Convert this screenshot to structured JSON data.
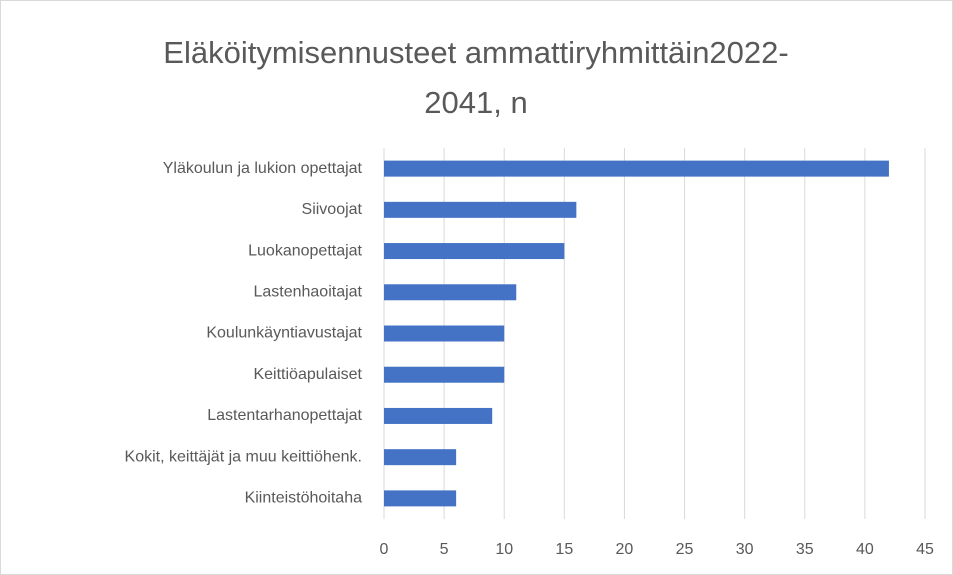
{
  "chart_data": {
    "type": "bar",
    "orientation": "horizontal",
    "title": "Eläköitymisennusteet ammattiryhmittäin2022-2041, n",
    "categories": [
      "Yläkoulun ja lukion opettajat",
      "Siivoojat",
      "Luokanopettajat",
      "Lastenhaoitajat",
      "Koulunkäyntiavustajat",
      "Keittiöapulaiset",
      "Lastentarhanopettajat",
      "Kokit, keittäjät ja muu keittiöhenk.",
      "Kiinteistöhoitaha"
    ],
    "values": [
      42,
      16,
      15,
      11,
      10,
      10,
      9,
      6,
      6
    ],
    "color": "#4472c4",
    "xlim": [
      0,
      45
    ],
    "xticks": [
      0,
      5,
      10,
      15,
      20,
      25,
      30,
      35,
      40,
      45
    ],
    "grid": true
  }
}
